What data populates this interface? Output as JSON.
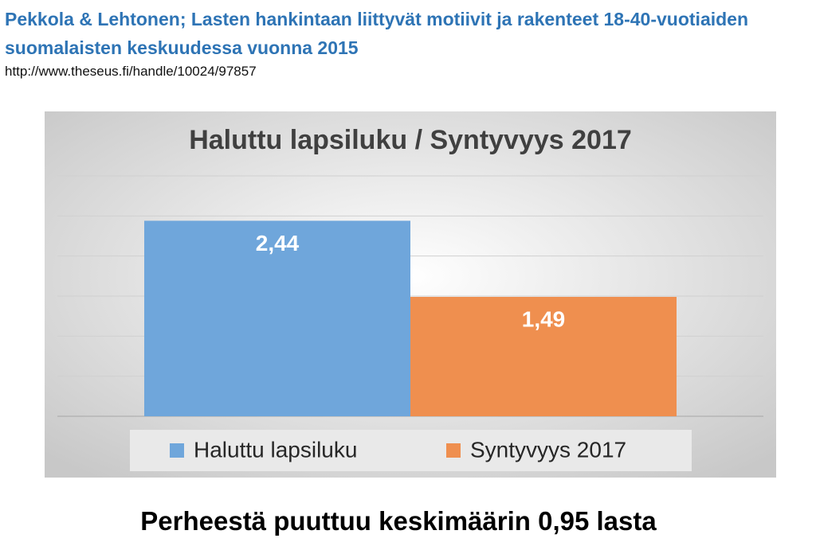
{
  "header": {
    "title": "Pekkola & Lehtonen; Lasten hankintaan liittyvät motiivit ja rakenteet 18-40-vuotiaiden suomalaisten keskuudessa vuonna 2015",
    "source": "http://www.theseus.fi/handle/10024/97857"
  },
  "chart_data": {
    "type": "bar",
    "title": "Haluttu lapsiluku / Syntyvyys 2017",
    "categories": [
      null
    ],
    "series": [
      {
        "name": "Haluttu lapsiluku",
        "color": "#6fa6db",
        "values": [
          2.44
        ],
        "value_labels": [
          "2,44"
        ]
      },
      {
        "name": "Syntyvyys 2017",
        "color": "#ef8f4f",
        "values": [
          1.49
        ],
        "value_labels": [
          "1,49"
        ]
      }
    ],
    "ylim": [
      0,
      3
    ],
    "yticks": [
      0,
      0.5,
      1,
      1.5,
      2,
      2.5,
      3
    ],
    "grid": true,
    "legend": "bottom"
  },
  "footer": {
    "caption": "Perheestä puuttuu keskimäärin 0,95 lasta"
  }
}
